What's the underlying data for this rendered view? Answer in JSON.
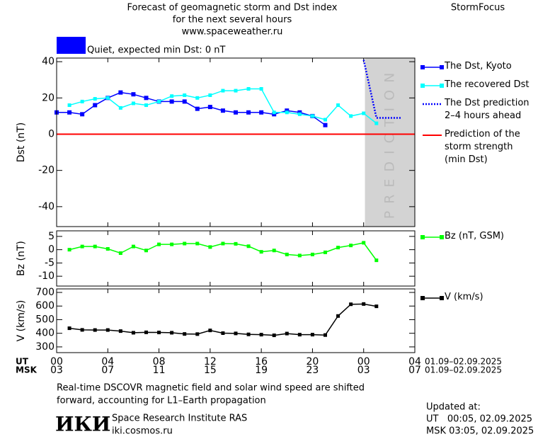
{
  "header": {
    "title": "Forecast of geomagnetic storm and Dst index",
    "subtitle": "for the next several hours",
    "url": "www.spaceweather.ru",
    "brand": "StormFocus"
  },
  "status": {
    "text": "Quiet, expected min Dst: 0 nT",
    "color": "#0000ff"
  },
  "chart_data": [
    {
      "type": "line",
      "ylabel": "Dst (nT)",
      "xlim": [
        0,
        28
      ],
      "ylim": [
        -51,
        42
      ],
      "yticks": [
        40,
        20,
        0,
        -20,
        -40
      ],
      "band": {
        "xlim": [
          24.1,
          28
        ],
        "label": "PREDICTION",
        "color": "#d3d3d3"
      },
      "reference_line": {
        "name": "Prediction of the\nstorm strength\n(min Dst)",
        "value": 0,
        "color": "#ff0000"
      },
      "series": [
        {
          "name": "The Dst, Kyoto",
          "color": "#0000ff",
          "marker": "square",
          "dash": false,
          "x": [
            0,
            1,
            2,
            3,
            4,
            5,
            6,
            7,
            8,
            9,
            10,
            11,
            12,
            13,
            14,
            15,
            16,
            17,
            18,
            19,
            20,
            21
          ],
          "values": [
            12,
            12,
            11,
            16,
            20,
            23,
            22,
            20,
            18,
            18,
            18,
            14,
            15,
            13,
            12,
            12,
            12,
            11,
            13,
            12,
            10,
            5
          ]
        },
        {
          "name": "The recovered Dst",
          "color": "#00ffff",
          "marker": "small",
          "dash": false,
          "x": [
            1,
            2,
            3,
            4,
            5,
            6,
            7,
            8,
            9,
            10,
            11,
            12,
            13,
            14,
            15,
            16,
            17,
            18,
            19,
            20,
            21,
            22,
            23,
            24,
            25
          ],
          "values": [
            16,
            18,
            19.5,
            20,
            14.5,
            17,
            16,
            18,
            21,
            21.5,
            20,
            21.5,
            24,
            24,
            25,
            25,
            12,
            12,
            11,
            10,
            8,
            16,
            10,
            11.5,
            6
          ]
        },
        {
          "name": "The Dst prediction\n2–4 hours ahead",
          "color": "#0000ff",
          "marker": "none",
          "dash": true,
          "x": [
            24,
            25,
            27
          ],
          "values": [
            41,
            9,
            9
          ]
        }
      ]
    },
    {
      "type": "line",
      "ylabel": "Bz (nT)",
      "xlim": [
        0,
        28
      ],
      "ylim": [
        -13.7,
        7.1
      ],
      "yticks": [
        5,
        0,
        -5,
        -10
      ],
      "series": [
        {
          "name": "Bz (nT, GSM)",
          "color": "#00ff00",
          "marker": "small",
          "dash": false,
          "x": [
            1,
            2,
            3,
            4,
            5,
            6,
            7,
            8,
            9,
            10,
            11,
            12,
            13,
            14,
            15,
            16,
            17,
            18,
            19,
            20,
            21,
            22,
            23,
            24,
            25
          ],
          "values": [
            0,
            1.2,
            1.2,
            0.3,
            -1.3,
            1.2,
            -0.3,
            2,
            2,
            2.3,
            2.3,
            1,
            2.3,
            2.2,
            1.3,
            -0.8,
            -0.3,
            -1.8,
            -2.2,
            -1.8,
            -1,
            0.8,
            1.6,
            2.6,
            -4
          ]
        }
      ]
    },
    {
      "type": "line",
      "ylabel": "V (km/s)",
      "xlim": [
        0,
        28
      ],
      "ylim": [
        258,
        726
      ],
      "yticks": [
        700,
        600,
        500,
        400,
        300
      ],
      "series": [
        {
          "name": "V (km/s)",
          "color": "#000000",
          "marker": "small",
          "dash": false,
          "x": [
            1,
            2,
            3,
            4,
            5,
            6,
            7,
            8,
            9,
            10,
            11,
            12,
            13,
            14,
            15,
            16,
            17,
            18,
            19,
            20,
            21,
            22,
            23,
            24,
            25
          ],
          "values": [
            437,
            425,
            424,
            424,
            416,
            404,
            407,
            406,
            404,
            395,
            394,
            421,
            401,
            399,
            392,
            390,
            385,
            398,
            390,
            390,
            387,
            527,
            613,
            615,
            598
          ]
        }
      ],
      "xtick_rows": [
        {
          "name": "UT",
          "date": "01.09–02.09.2025",
          "ticks": [
            {
              "value": 0,
              "label": "00"
            },
            {
              "value": 4,
              "label": "04"
            },
            {
              "value": 8,
              "label": "08"
            },
            12,
            16,
            20,
            {
              "value": 24,
              "label": "00"
            },
            {
              "value": 28,
              "label": "04"
            }
          ]
        },
        {
          "name": "MSK",
          "date": "01.09–02.09.2025",
          "ticks": [
            {
              "value": 0,
              "label": "03"
            },
            {
              "value": 4,
              "label": "07"
            },
            {
              "value": 8,
              "label": "11"
            },
            {
              "value": 12,
              "label": "15"
            },
            {
              "value": 16,
              "label": "19"
            },
            {
              "value": 20,
              "label": "23"
            },
            {
              "value": 24,
              "label": "03"
            },
            {
              "value": 28,
              "label": "07"
            }
          ]
        }
      ]
    }
  ],
  "footer": {
    "note": [
      "Real-time DSCOVR magnetic field and solar wind speed are shifted",
      "forward, accounting for L1–Earth propagation"
    ],
    "logo": "ИКИ",
    "institute": "Space Research Institute RAS",
    "site": "iki.cosmos.ru",
    "updated": [
      "Updated at:",
      "UT   00:05, 02.09.2025",
      "MSK 03:05, 02.09.2025"
    ]
  }
}
